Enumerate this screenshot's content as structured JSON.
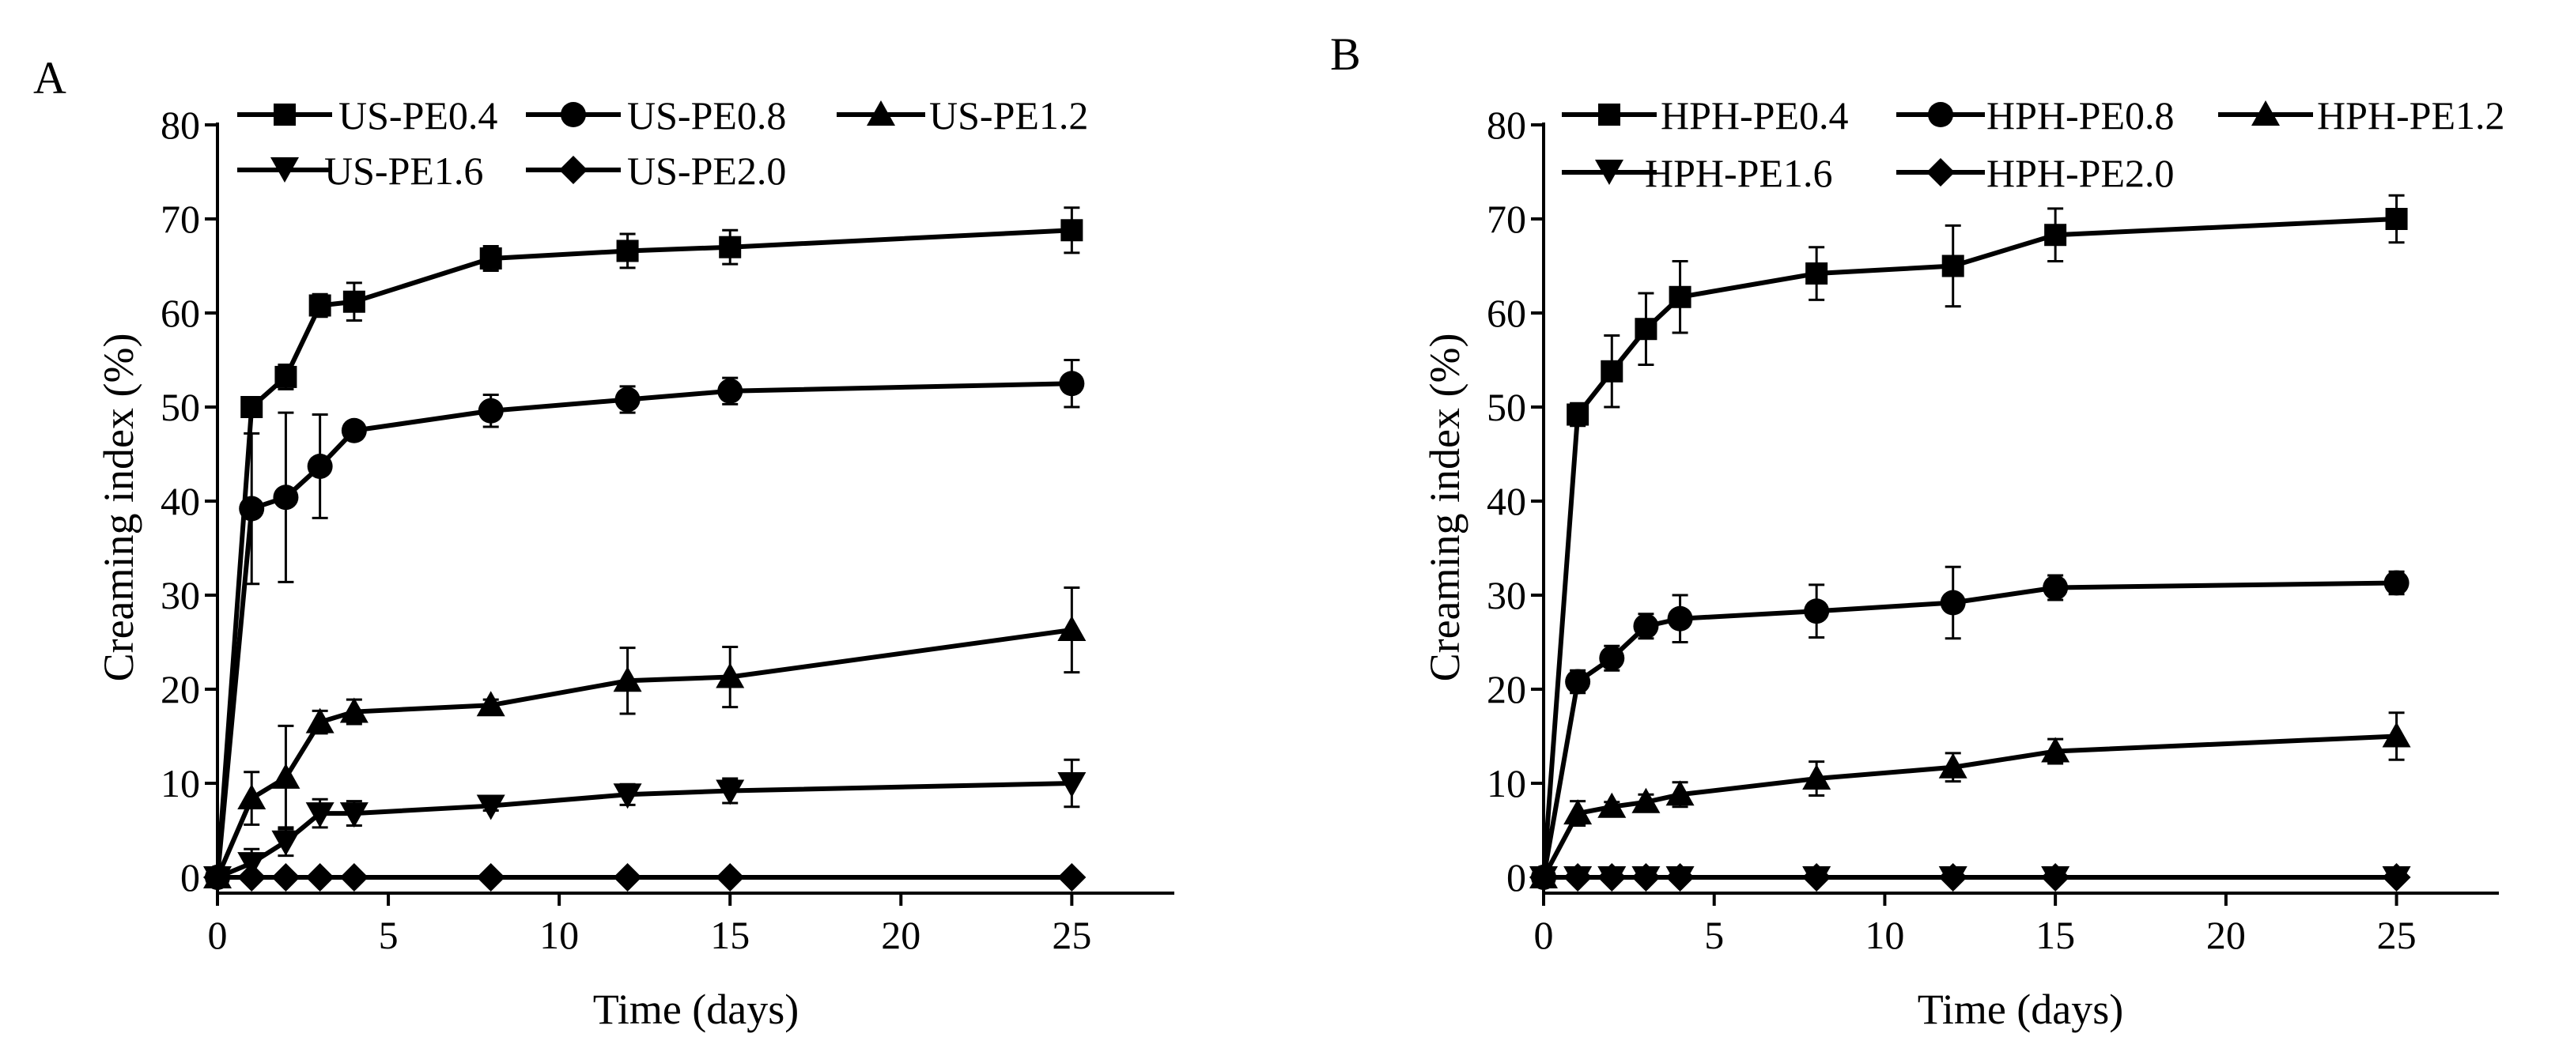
{
  "chart_data": [
    {
      "panel": "A",
      "type": "line",
      "title": "",
      "xlabel": "Time (days)",
      "ylabel": "Creaming index (%)",
      "xlim": [
        0,
        28
      ],
      "ylim": [
        0,
        80
      ],
      "xticks": [
        0,
        5,
        10,
        15,
        20,
        25
      ],
      "yticks": [
        0,
        10,
        20,
        30,
        40,
        50,
        60,
        70,
        80
      ],
      "x": [
        0,
        1,
        2,
        3,
        4,
        8,
        12,
        15,
        25
      ],
      "legend_position": "top",
      "series": [
        {
          "name": "US-PE0.4",
          "marker": "square",
          "values": [
            0,
            50,
            53.2,
            60.8,
            61.2,
            65.8,
            66.6,
            67.0,
            68.8
          ],
          "errors": [
            0,
            0.5,
            1.3,
            1.2,
            2.0,
            1.3,
            1.8,
            1.8,
            2.4
          ]
        },
        {
          "name": "US-PE0.8",
          "marker": "circle",
          "values": [
            0,
            39.2,
            40.4,
            43.7,
            47.5,
            49.6,
            50.8,
            51.7,
            52.5
          ],
          "errors": [
            0,
            8.0,
            9.0,
            5.5,
            0.5,
            1.7,
            1.4,
            1.4,
            2.5
          ]
        },
        {
          "name": "US-PE1.2",
          "marker": "triangle-up",
          "values": [
            0,
            8.4,
            10.6,
            16.5,
            17.6,
            18.3,
            20.9,
            21.3,
            26.3
          ],
          "errors": [
            0,
            2.8,
            5.5,
            1.2,
            1.3,
            0.6,
            3.5,
            3.2,
            4.5
          ]
        },
        {
          "name": "US-PE1.6",
          "marker": "triangle-down",
          "values": [
            0,
            1.5,
            3.8,
            6.8,
            6.8,
            7.6,
            8.8,
            9.2,
            10.0
          ],
          "errors": [
            0,
            1.5,
            1.5,
            1.5,
            1.3,
            0.5,
            1.1,
            1.3,
            2.5
          ]
        },
        {
          "name": "US-PE2.0",
          "marker": "diamond",
          "values": [
            0,
            0,
            0,
            0,
            0,
            0,
            0,
            0,
            0
          ],
          "errors": [
            0,
            0,
            0,
            0,
            0,
            0,
            0,
            0,
            0
          ]
        }
      ]
    },
    {
      "panel": "B",
      "type": "line",
      "title": "",
      "xlabel": "Time (days)",
      "ylabel": "Creaming index (%)",
      "xlim": [
        0,
        28
      ],
      "ylim": [
        0,
        80
      ],
      "xticks": [
        0,
        5,
        10,
        15,
        20,
        25
      ],
      "yticks": [
        0,
        10,
        20,
        30,
        40,
        50,
        60,
        70,
        80
      ],
      "x": [
        0,
        1,
        2,
        3,
        4,
        8,
        12,
        15,
        25
      ],
      "legend_position": "top",
      "series": [
        {
          "name": "HPH-PE0.4",
          "marker": "square",
          "values": [
            0,
            49.2,
            53.8,
            58.3,
            61.7,
            64.2,
            65.0,
            68.3,
            70.0
          ],
          "errors": [
            0,
            1.2,
            3.8,
            3.8,
            3.8,
            2.8,
            4.3,
            2.8,
            2.5
          ]
        },
        {
          "name": "HPH-PE0.8",
          "marker": "circle",
          "values": [
            0,
            20.8,
            23.3,
            26.7,
            27.5,
            28.3,
            29.2,
            30.8,
            31.3
          ],
          "errors": [
            0,
            1.2,
            1.3,
            1.3,
            2.5,
            2.8,
            3.8,
            1.3,
            1.2
          ]
        },
        {
          "name": "HPH-PE1.2",
          "marker": "triangle-up",
          "values": [
            0,
            6.8,
            7.5,
            8.0,
            8.8,
            10.5,
            11.7,
            13.4,
            15.0
          ],
          "errors": [
            0,
            1.3,
            0.5,
            0.8,
            1.3,
            1.8,
            1.5,
            1.3,
            2.5
          ]
        },
        {
          "name": "HPH-PE1.6",
          "marker": "triangle-down",
          "values": [
            0,
            0,
            0,
            0,
            0,
            0,
            0,
            0,
            0
          ],
          "errors": [
            0,
            0,
            0,
            0,
            0,
            0,
            0,
            0,
            0
          ]
        },
        {
          "name": "HPH-PE2.0",
          "marker": "diamond",
          "values": [
            0,
            0,
            0,
            0,
            0,
            0,
            0,
            0,
            0
          ],
          "errors": [
            0,
            0,
            0,
            0,
            0,
            0,
            0,
            0,
            0
          ]
        }
      ]
    }
  ]
}
